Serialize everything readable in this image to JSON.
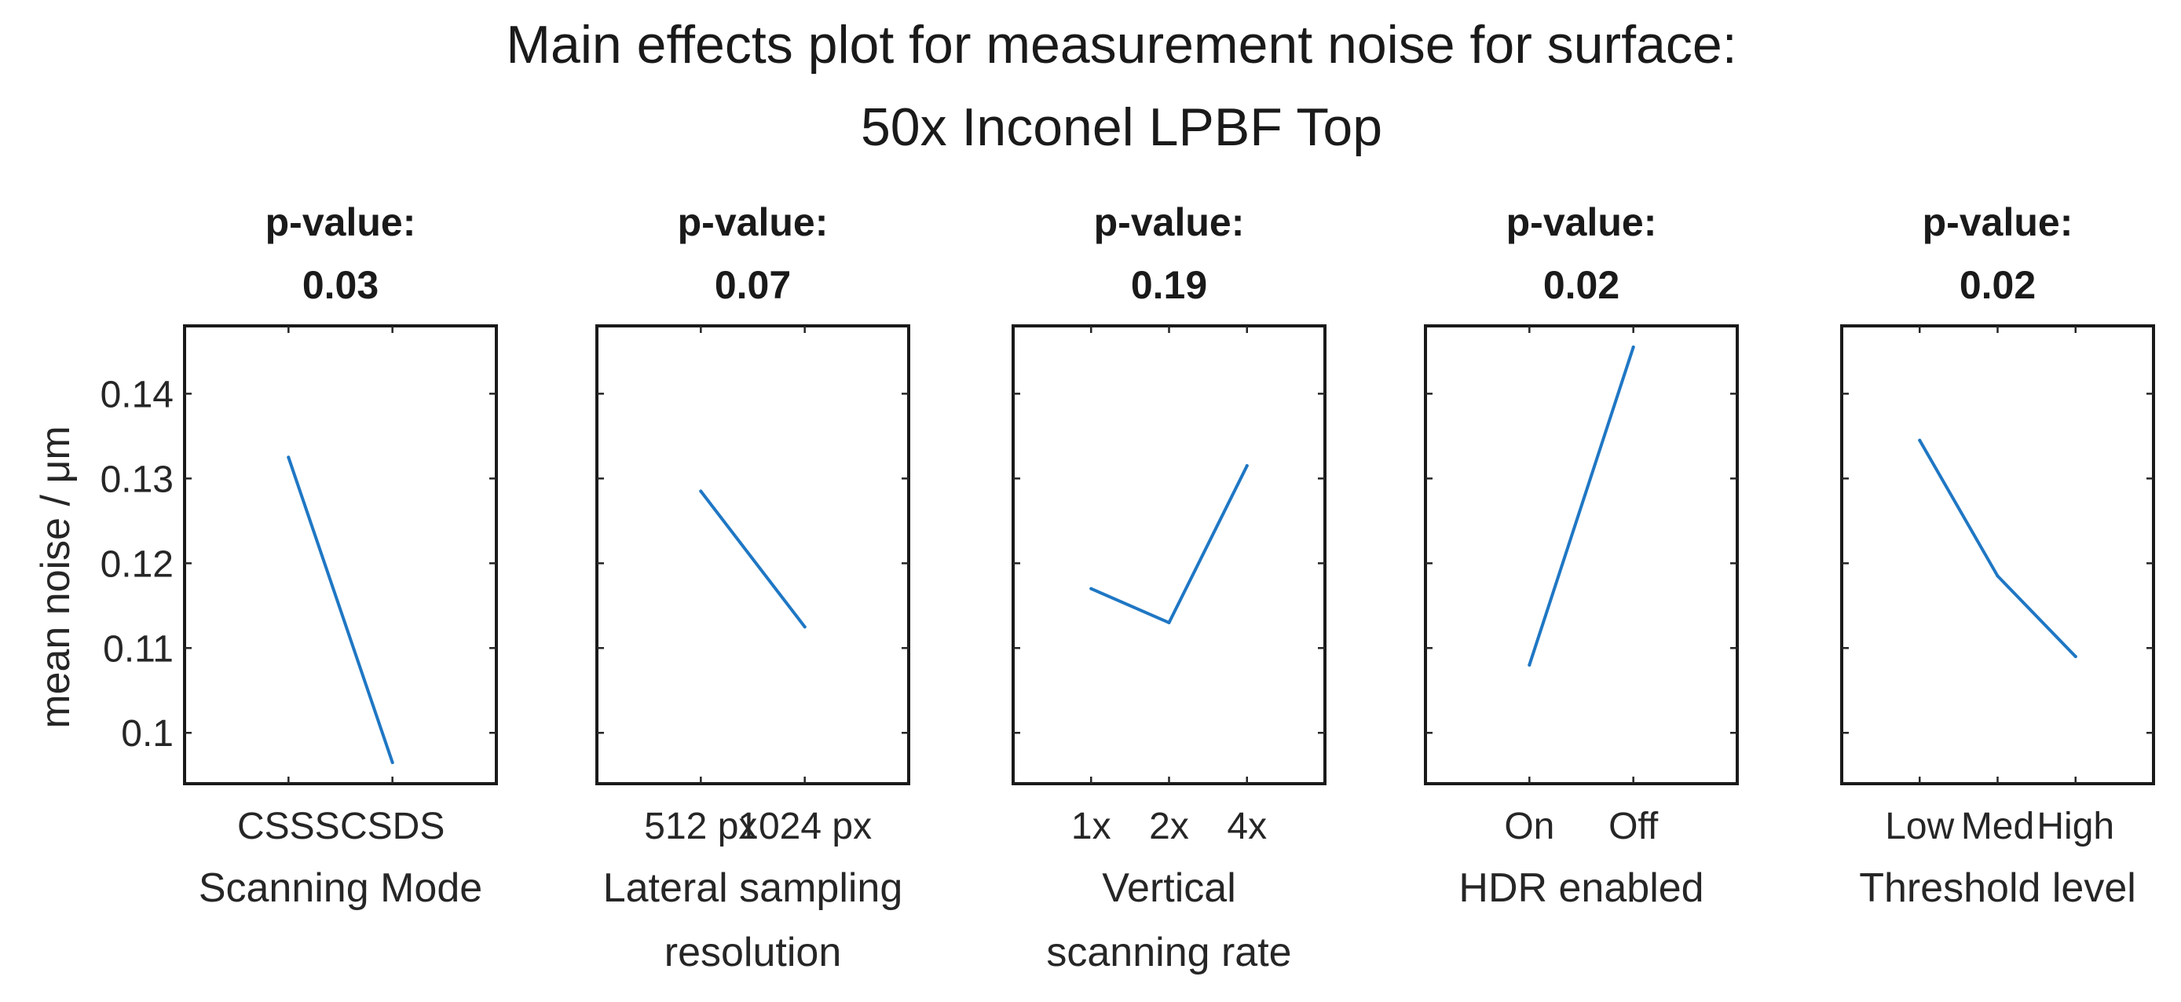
{
  "chart_data": {
    "type": "line",
    "title": [
      "Main effects plot for measurement noise for surface:",
      "50x Inconel LPBF Top"
    ],
    "ylabel": "mean noise / μm",
    "ylim": [
      0.094,
      0.148
    ],
    "yticks": [
      0.1,
      0.11,
      0.12,
      0.13,
      0.14
    ],
    "ytick_labels": [
      "0.1",
      "0.11",
      "0.12",
      "0.13",
      "0.14"
    ],
    "series_color": "#1f77c4",
    "panels": [
      {
        "pvalue_label": "p-value:",
        "pvalue": "0.03",
        "categories": [
          "CSSS",
          "CSDS"
        ],
        "values": [
          0.1325,
          0.0965
        ],
        "xlabel": [
          "Scanning Mode"
        ]
      },
      {
        "pvalue_label": "p-value:",
        "pvalue": "0.07",
        "categories": [
          "512 px",
          "1024 px"
        ],
        "values": [
          0.1285,
          0.1125
        ],
        "xlabel": [
          "Lateral sampling",
          "resolution"
        ]
      },
      {
        "pvalue_label": "p-value:",
        "pvalue": "0.19",
        "categories": [
          "1x",
          "2x",
          "4x"
        ],
        "values": [
          0.117,
          0.113,
          0.1315
        ],
        "xlabel": [
          "Vertical",
          "scanning rate"
        ]
      },
      {
        "pvalue_label": "p-value:",
        "pvalue": "0.02",
        "categories": [
          "On",
          "Off"
        ],
        "values": [
          0.108,
          0.1455
        ],
        "xlabel": [
          "HDR enabled"
        ]
      },
      {
        "pvalue_label": "p-value:",
        "pvalue": "0.02",
        "categories": [
          "Low",
          "Med",
          "High"
        ],
        "values": [
          0.1345,
          0.1185,
          0.109
        ],
        "xlabel": [
          "Threshold level"
        ]
      }
    ]
  }
}
